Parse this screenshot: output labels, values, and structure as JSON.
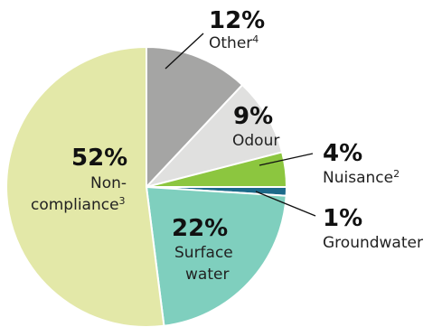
{
  "chart_data": {
    "type": "pie",
    "title": "",
    "slices": [
      {
        "key": "other",
        "value": 12,
        "percent_label": "12%",
        "label": "Other",
        "note": "4",
        "color": "#a5a5a4"
      },
      {
        "key": "odour",
        "value": 9,
        "percent_label": "9%",
        "label": "Odour",
        "note": "",
        "color": "#e0e0df"
      },
      {
        "key": "nuisance",
        "value": 4,
        "percent_label": "4%",
        "label": "Nuisance",
        "note": "2",
        "color": "#8cc63f"
      },
      {
        "key": "groundwater",
        "value": 1,
        "percent_label": "1%",
        "label": "Groundwater",
        "note": "",
        "color": "#1c6a8a"
      },
      {
        "key": "surface",
        "value": 22,
        "percent_label": "22%",
        "label": "Surface water",
        "label_lines": [
          "Surface",
          "water"
        ],
        "note": "",
        "color": "#7fcfbe"
      },
      {
        "key": "noncompliance",
        "value": 52,
        "percent_label": "52%",
        "label": "Non-compliance",
        "label_lines": [
          "Non-",
          "compliance"
        ],
        "note": "3",
        "color": "#e3e8a8"
      }
    ],
    "start_angle_deg": -90,
    "direction": "clockwise",
    "legend": "none",
    "slice_border_color": "#ffffff"
  }
}
